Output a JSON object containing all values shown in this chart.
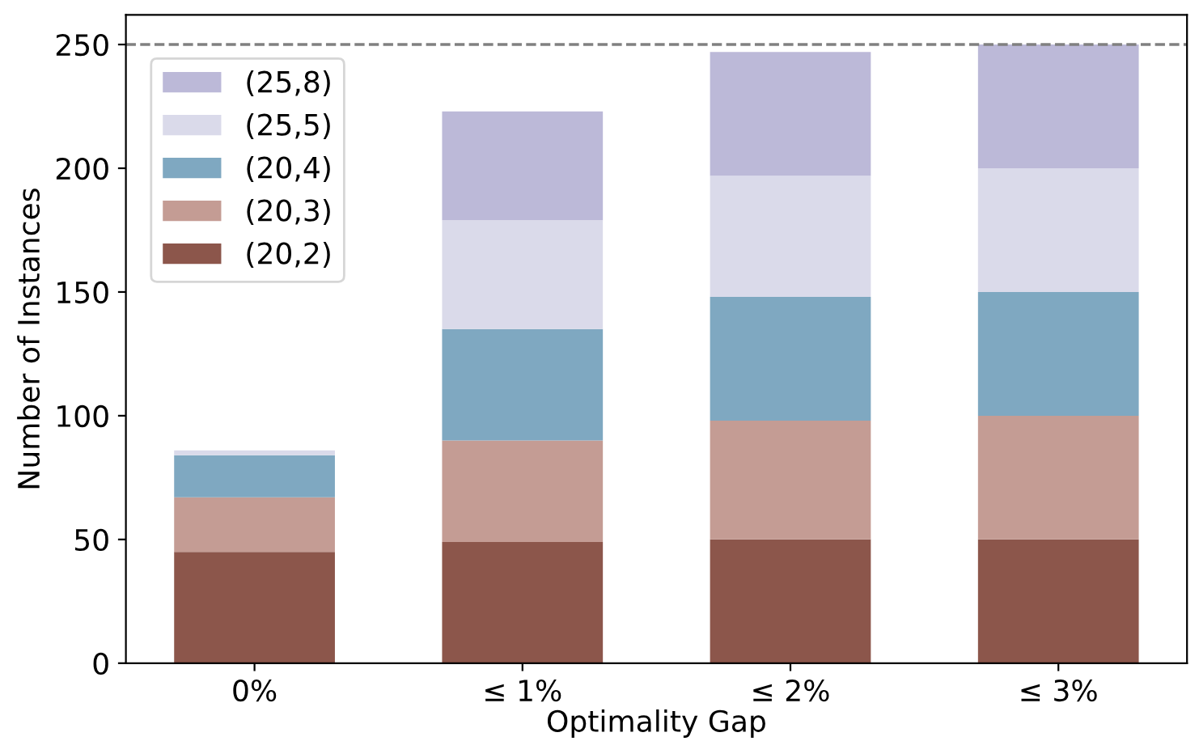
{
  "chart_data": {
    "type": "bar",
    "stacked": true,
    "xlabel": "Optimality Gap",
    "ylabel": "Number of Instances",
    "categories": [
      "0%",
      "≤ 1%",
      "≤ 2%",
      "≤ 3%"
    ],
    "series": [
      {
        "name": "(20,2)",
        "color": "#8c564b",
        "values": [
          45,
          49,
          50,
          50
        ]
      },
      {
        "name": "(20,3)",
        "color": "#c49c94",
        "values": [
          22,
          41,
          48,
          50
        ]
      },
      {
        "name": "(20,4)",
        "color": "#7fa8c1",
        "values": [
          17,
          45,
          50,
          50
        ]
      },
      {
        "name": "(25,5)",
        "color": "#dadaea",
        "values": [
          2,
          44,
          49,
          50
        ]
      },
      {
        "name": "(25,8)",
        "color": "#bcb9d8",
        "values": [
          0,
          44,
          50,
          50
        ]
      }
    ],
    "ylim": [
      0,
      262
    ],
    "yticks": [
      0,
      50,
      100,
      150,
      200,
      250
    ],
    "ref_lines": [
      {
        "axis": "y",
        "value": 250,
        "color": "#808080",
        "line_style": "dashed"
      }
    ],
    "legend": "top left",
    "grid": false
  }
}
